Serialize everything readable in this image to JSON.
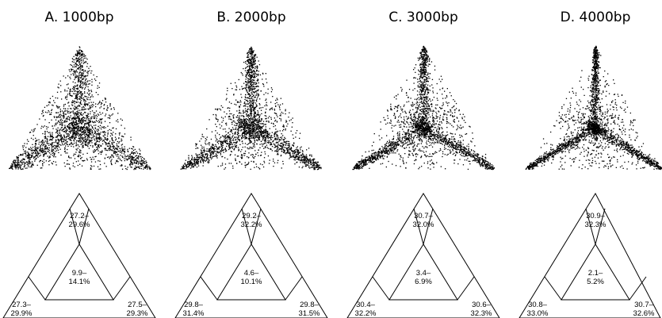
{
  "panels": [
    {
      "title": "A. 1000bp",
      "spread": 0.16,
      "top": [
        "27.2–",
        "29.6%"
      ],
      "center": [
        "9.9–",
        "14.1%"
      ],
      "left": [
        "27.3–",
        "29.9%"
      ],
      "right": [
        "27.5–",
        "29.3%"
      ]
    },
    {
      "title": "B. 2000bp",
      "spread": 0.11,
      "top": [
        "29.2–",
        "32.2%"
      ],
      "center": [
        "4.6–",
        "10.1%"
      ],
      "left": [
        "29.8–",
        "31.4%"
      ],
      "right": [
        "29.8–",
        "31.5%"
      ]
    },
    {
      "title": "C. 3000bp",
      "spread": 0.08,
      "top": [
        "30.7–",
        "32.0%"
      ],
      "center": [
        "3.4–",
        "6.9%"
      ],
      "left": [
        "30.4–",
        "32.2%"
      ],
      "right": [
        "30.6–",
        "32.3%"
      ]
    },
    {
      "title": "D. 4000bp",
      "spread": 0.06,
      "top": [
        "30.9–",
        "32.3%"
      ],
      "center": [
        "2.1–",
        "5.2%"
      ],
      "left": [
        "30.8–",
        "33.0%"
      ],
      "right": [
        "30.7–",
        "32.6%"
      ]
    }
  ]
}
